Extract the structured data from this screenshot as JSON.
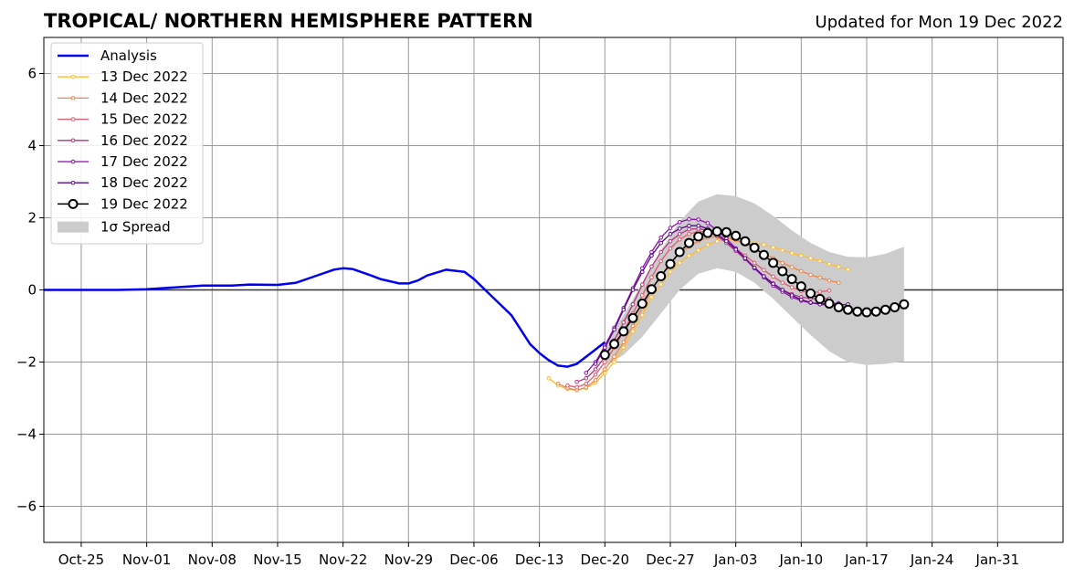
{
  "chart_data": {
    "type": "line",
    "title": "TROPICAL/ NORTHERN HEMISPHERE PATTERN",
    "subtitle": "Updated for Mon 19 Dec 2022",
    "xlabel": "",
    "ylabel": "",
    "xlim": [
      "2022-10-21",
      "2023-02-07"
    ],
    "ylim": [
      -7,
      7
    ],
    "yticks": [
      -6,
      -4,
      -2,
      0,
      2,
      4,
      6
    ],
    "ytick_labels": [
      "−6",
      "−4",
      "−2",
      "0",
      "2",
      "4",
      "6"
    ],
    "xticks": [
      "2022-10-25",
      "2022-11-01",
      "2022-11-08",
      "2022-11-15",
      "2022-11-22",
      "2022-11-29",
      "2022-12-06",
      "2022-12-13",
      "2022-12-20",
      "2022-12-27",
      "2023-01-03",
      "2023-01-10",
      "2023-01-17",
      "2023-01-24",
      "2023-01-31"
    ],
    "xtick_labels": [
      "Oct-25",
      "Nov-01",
      "Nov-08",
      "Nov-15",
      "Nov-22",
      "Nov-29",
      "Dec-06",
      "Dec-13",
      "Dec-20",
      "Dec-27",
      "Jan-03",
      "Jan-10",
      "Jan-17",
      "Jan-24",
      "Jan-31"
    ],
    "grid": true,
    "zero_line": true,
    "legend_position": "top-left",
    "analysis": {
      "name": "Analysis",
      "color": "#0000ee",
      "points": [
        [
          "2022-10-21",
          0.0
        ],
        [
          "2022-10-25",
          0.0
        ],
        [
          "2022-10-29",
          0.0
        ],
        [
          "2022-11-01",
          0.02
        ],
        [
          "2022-11-04",
          0.07
        ],
        [
          "2022-11-07",
          0.12
        ],
        [
          "2022-11-10",
          0.12
        ],
        [
          "2022-11-12",
          0.15
        ],
        [
          "2022-11-15",
          0.14
        ],
        [
          "2022-11-17",
          0.2
        ],
        [
          "2022-11-19",
          0.38
        ],
        [
          "2022-11-21",
          0.56
        ],
        [
          "2022-11-22",
          0.6
        ],
        [
          "2022-11-23",
          0.58
        ],
        [
          "2022-11-25",
          0.4
        ],
        [
          "2022-11-26",
          0.3
        ],
        [
          "2022-11-28",
          0.18
        ],
        [
          "2022-11-29",
          0.18
        ],
        [
          "2022-11-30",
          0.26
        ],
        [
          "2022-12-01",
          0.4
        ],
        [
          "2022-12-03",
          0.56
        ],
        [
          "2022-12-05",
          0.5
        ],
        [
          "2022-12-06",
          0.3
        ],
        [
          "2022-12-08",
          -0.2
        ],
        [
          "2022-12-10",
          -0.7
        ],
        [
          "2022-12-12",
          -1.5
        ],
        [
          "2022-12-13",
          -1.75
        ],
        [
          "2022-12-14",
          -1.95
        ],
        [
          "2022-12-15",
          -2.1
        ],
        [
          "2022-12-16",
          -2.13
        ],
        [
          "2022-12-17",
          -2.05
        ],
        [
          "2022-12-18",
          -1.85
        ],
        [
          "2022-12-19",
          -1.65
        ],
        [
          "2022-12-20",
          -1.45
        ]
      ]
    },
    "series": [
      {
        "name": "13 Dec 2022",
        "color": "#ffbb33",
        "start": "2022-12-14",
        "values": [
          -2.45,
          -2.65,
          -2.75,
          -2.78,
          -2.72,
          -2.58,
          -2.3,
          -2.0,
          -1.6,
          -1.15,
          -0.7,
          -0.2,
          0.15,
          0.5,
          0.75,
          0.95,
          1.1,
          1.25,
          1.35,
          1.4,
          1.38,
          1.35,
          1.3,
          1.25,
          1.18,
          1.1,
          1.02,
          0.95,
          0.88,
          0.8,
          0.72,
          0.64,
          0.57
        ]
      },
      {
        "name": "14 Dec 2022",
        "color": "#f0844a",
        "start": "2022-12-15",
        "values": [
          -2.6,
          -2.72,
          -2.78,
          -2.7,
          -2.5,
          -2.2,
          -1.85,
          -1.45,
          -1.0,
          -0.5,
          0.0,
          0.4,
          0.75,
          1.0,
          1.2,
          1.35,
          1.45,
          1.48,
          1.45,
          1.38,
          1.28,
          1.15,
          1.0,
          0.88,
          0.75,
          0.63,
          0.52,
          0.42,
          0.34,
          0.26,
          0.2
        ]
      },
      {
        "name": "15 Dec 2022",
        "color": "#e05b6e",
        "start": "2022-12-16",
        "values": [
          -2.65,
          -2.7,
          -2.6,
          -2.35,
          -2.0,
          -1.6,
          -1.15,
          -0.65,
          -0.15,
          0.35,
          0.8,
          1.15,
          1.4,
          1.55,
          1.62,
          1.6,
          1.5,
          1.35,
          1.15,
          0.95,
          0.75,
          0.55,
          0.37,
          0.2,
          0.07,
          -0.03,
          -0.08,
          -0.05,
          -0.02
        ]
      },
      {
        "name": "16 Dec 2022",
        "color": "#b0367f",
        "start": "2022-12-17",
        "values": [
          -2.55,
          -2.45,
          -2.2,
          -1.85,
          -1.4,
          -0.9,
          -0.4,
          0.15,
          0.65,
          1.05,
          1.35,
          1.55,
          1.68,
          1.7,
          1.65,
          1.5,
          1.3,
          1.08,
          0.85,
          0.6,
          0.38,
          0.18,
          0.0,
          -0.12,
          -0.2,
          -0.24,
          -0.25,
          -0.24
        ]
      },
      {
        "name": "17 Dec 2022",
        "color": "#8b0ea8",
        "start": "2022-12-18",
        "values": [
          -2.3,
          -2.0,
          -1.55,
          -1.05,
          -0.5,
          0.05,
          0.6,
          1.05,
          1.45,
          1.72,
          1.88,
          1.96,
          1.95,
          1.85,
          1.65,
          1.42,
          1.15,
          0.88,
          0.6,
          0.35,
          0.12,
          -0.05,
          -0.2,
          -0.3,
          -0.36,
          -0.38,
          -0.38,
          -0.37
        ]
      },
      {
        "name": "18 Dec 2022",
        "color": "#5c0a8a",
        "start": "2022-12-19",
        "values": [
          -2.05,
          -1.6,
          -1.1,
          -0.55,
          0.0,
          0.5,
          0.95,
          1.3,
          1.55,
          1.7,
          1.78,
          1.78,
          1.7,
          1.55,
          1.35,
          1.12,
          0.88,
          0.62,
          0.38,
          0.17,
          0.0,
          -0.15,
          -0.27,
          -0.35,
          -0.4,
          -0.42,
          -0.42,
          -0.4
        ]
      },
      {
        "name": "19 Dec 2022",
        "color": "#000000",
        "start": "2022-12-20",
        "values": [
          -1.8,
          -1.5,
          -1.15,
          -0.78,
          -0.38,
          0.02,
          0.38,
          0.72,
          1.05,
          1.3,
          1.48,
          1.58,
          1.62,
          1.6,
          1.5,
          1.35,
          1.17,
          0.97,
          0.75,
          0.52,
          0.3,
          0.1,
          -0.1,
          -0.25,
          -0.38,
          -0.48,
          -0.55,
          -0.6,
          -0.62,
          -0.6,
          -0.55,
          -0.48,
          -0.4
        ]
      }
    ],
    "spread": {
      "name": "1σ Spread",
      "color": "#cccccc",
      "dates": [
        "2022-12-20",
        "2022-12-22",
        "2022-12-24",
        "2022-12-26",
        "2022-12-28",
        "2022-12-30",
        "2023-01-01",
        "2023-01-03",
        "2023-01-05",
        "2023-01-07",
        "2023-01-09",
        "2023-01-11",
        "2023-01-13",
        "2023-01-15",
        "2023-01-17",
        "2023-01-19",
        "2023-01-21"
      ],
      "upper": [
        -1.5,
        -0.7,
        0.2,
        1.1,
        1.9,
        2.45,
        2.65,
        2.6,
        2.4,
        2.05,
        1.65,
        1.3,
        1.05,
        0.92,
        0.9,
        1.0,
        1.2
      ],
      "lower": [
        -2.1,
        -1.8,
        -1.3,
        -0.65,
        0.0,
        0.45,
        0.6,
        0.5,
        0.2,
        -0.25,
        -0.75,
        -1.25,
        -1.7,
        -2.0,
        -2.08,
        -2.05,
        -1.98
      ]
    }
  }
}
